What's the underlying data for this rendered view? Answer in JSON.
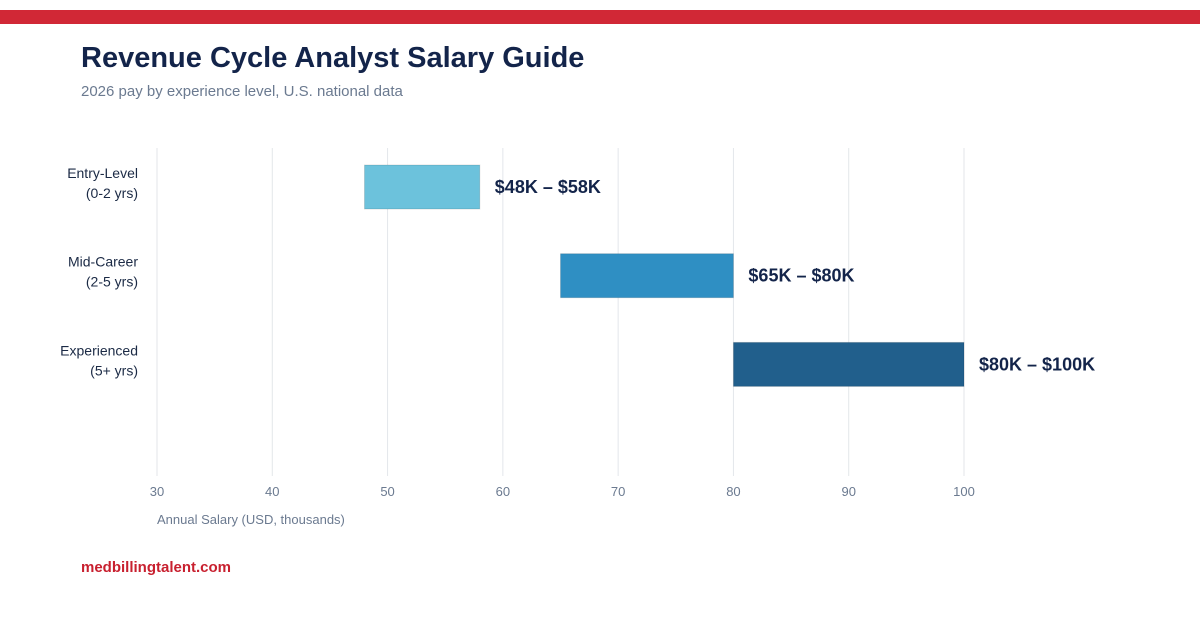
{
  "header": {
    "title": "Revenue Cycle Analyst Salary Guide",
    "subtitle": "2026 pay by experience level, U.S. national data"
  },
  "footer": {
    "site": "medbillingtalent.com"
  },
  "colors": {
    "accent_bar": "#d12836",
    "title": "#13244a",
    "footer_link": "#c8202f",
    "grid": "#e3e6ea"
  },
  "chart_data": {
    "type": "bar",
    "orientation": "horizontal-range",
    "title": "Revenue Cycle Analyst Salary Guide",
    "subtitle": "2026 pay by experience level, U.S. national data",
    "xlabel": "Annual Salary (USD, thousands)",
    "ylabel": "",
    "xlim": [
      30,
      100
    ],
    "xticks": [
      30,
      40,
      50,
      60,
      70,
      80,
      90,
      100
    ],
    "grid": "vertical",
    "legend": "none",
    "series": [
      {
        "category_lines": [
          "Entry-Level",
          "(0-2 yrs)"
        ],
        "low": 48,
        "high": 58,
        "label": "$48K – $58K",
        "color": "#6cc2dc"
      },
      {
        "category_lines": [
          "Mid-Career",
          "(2-5 yrs)"
        ],
        "low": 65,
        "high": 80,
        "label": "$65K – $80K",
        "color": "#2f8fc3"
      },
      {
        "category_lines": [
          "Experienced",
          "(5+ yrs)"
        ],
        "low": 80,
        "high": 100,
        "label": "$80K – $100K",
        "color": "#215f8c"
      }
    ]
  }
}
